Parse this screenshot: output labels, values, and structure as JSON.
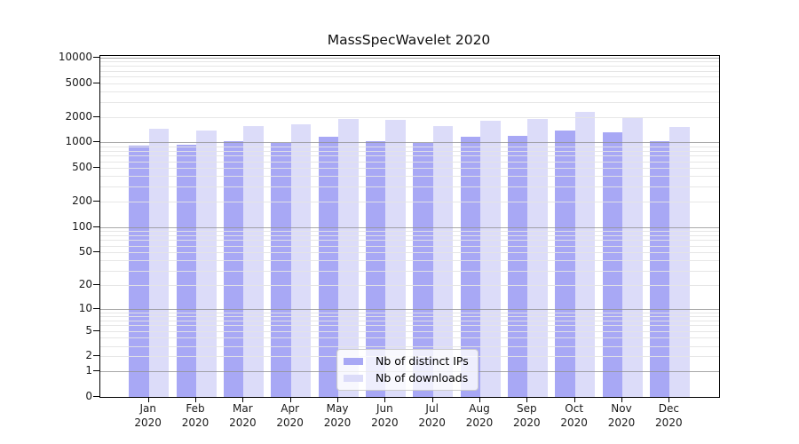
{
  "title": "MassSpecWavelet 2020",
  "chart_data": {
    "type": "bar",
    "title": "MassSpecWavelet 2020",
    "categories": [
      "Jan",
      "Feb",
      "Mar",
      "Apr",
      "May",
      "Jun",
      "Jul",
      "Aug",
      "Sep",
      "Oct",
      "Nov",
      "Dec"
    ],
    "category_year": "2020",
    "series": [
      {
        "name": "Nb of distinct IPs",
        "color": "#a8a8f5",
        "values": [
          920,
          930,
          1040,
          990,
          1160,
          1040,
          990,
          1180,
          1190,
          1400,
          1330,
          1040
        ]
      },
      {
        "name": "Nb of downloads",
        "color": "#dcdcf9",
        "values": [
          1440,
          1400,
          1560,
          1640,
          1880,
          1850,
          1570,
          1820,
          1910,
          2300,
          2000,
          1540
        ]
      }
    ],
    "y_ticks": [
      0,
      1,
      2,
      5,
      10,
      20,
      50,
      100,
      200,
      500,
      1000,
      2000,
      5000,
      10000
    ],
    "yscale": "log1p",
    "ylim": [
      0,
      10000
    ],
    "grid": true,
    "grid_color_major": "#919191",
    "grid_color_minor": "#e4e4e4",
    "legend_position": "lower center",
    "xlabel": "",
    "ylabel": ""
  }
}
